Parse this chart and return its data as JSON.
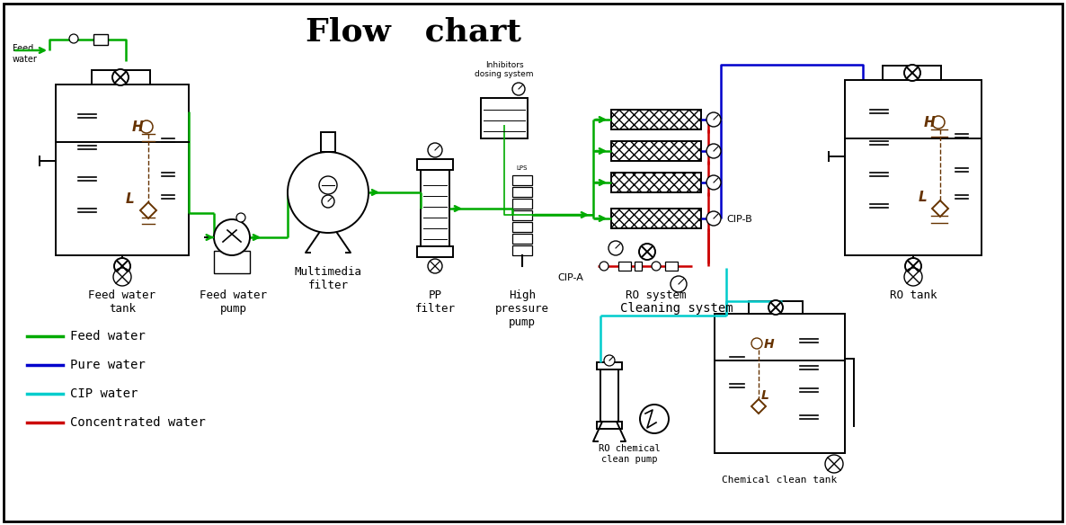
{
  "title": "Flow   chart",
  "title_fontsize": 26,
  "bg_color": "#ffffff",
  "fw": "#00aa00",
  "pw": "#0000cc",
  "cw": "#00cccc",
  "conc": "#cc0000",
  "black": "#000000",
  "brown": "#663300",
  "legend_items": [
    {
      "label": "Feed water",
      "color": "#00aa00"
    },
    {
      "label": "Pure water",
      "color": "#0000cc"
    },
    {
      "label": "CIP water",
      "color": "#00cccc"
    },
    {
      "label": "Concentrated water",
      "color": "#cc0000"
    }
  ],
  "labels": {
    "feed_water_tank": "Feed water\ntank",
    "feed_water_pump": "Feed water\npump",
    "multimedia_filter": "Multimedia\nfilter",
    "pp_filter": "PP\nfilter",
    "high_pressure_pump": "High\npressure\npump",
    "cip_a": "CIP-A",
    "ro_system": "RO system",
    "ro_tank": "RO tank",
    "cleaning_system": "Cleaning system",
    "ro_chemical_clean_pump": "RO chemical\nclean pump",
    "chemical_clean_tank": "Chemical clean tank",
    "inhibitors_dosing": "Inhibitors\ndosing system",
    "cip_b": "CIP-B",
    "feed_water_inlet": "Feed\nwater"
  }
}
